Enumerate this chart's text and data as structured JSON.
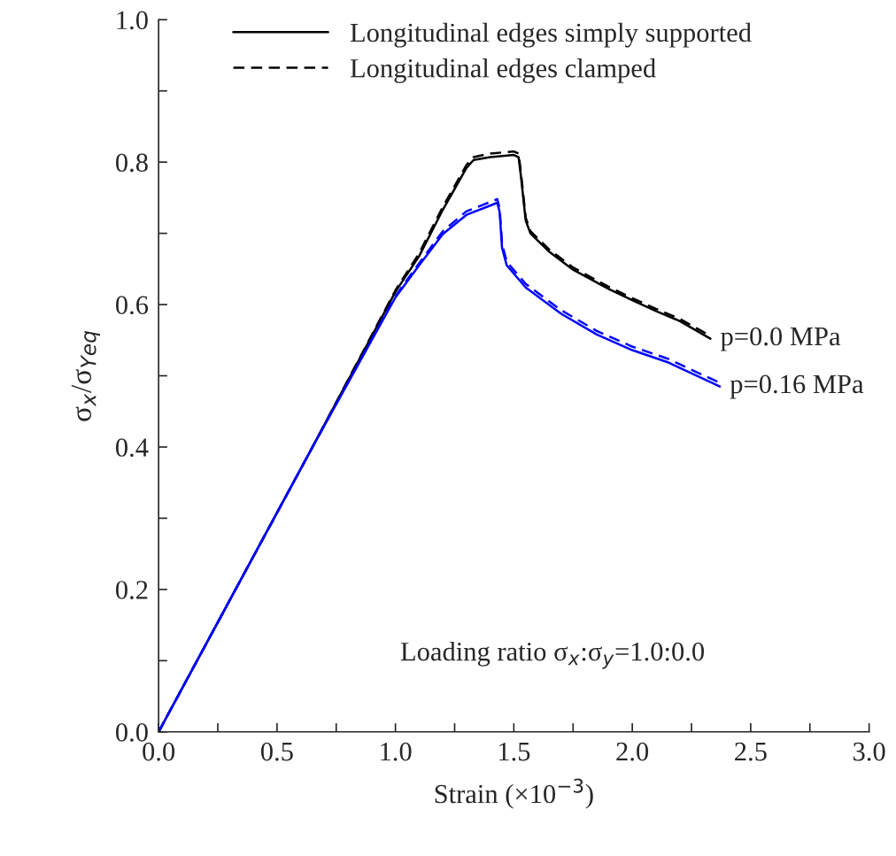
{
  "chart_data": {
    "type": "line",
    "xlabel": "Strain (×10$^{−3}$)",
    "ylabel": "σ$_{x}$/σ$_{Yeq}$",
    "xlim": [
      0,
      3.0
    ],
    "ylim": [
      0,
      1.0
    ],
    "xticks": [
      {
        "value": 0,
        "label": "0.0"
      },
      {
        "value": 0.25,
        "label": null
      },
      {
        "value": 0.5,
        "label": "0.5"
      },
      {
        "value": 0.75,
        "label": null
      },
      {
        "value": 1.0,
        "label": "1.0"
      },
      {
        "value": 1.25,
        "label": null
      },
      {
        "value": 1.5,
        "label": "1.5"
      },
      {
        "value": 1.75,
        "label": null
      },
      {
        "value": 2.0,
        "label": "2.0"
      },
      {
        "value": 2.25,
        "label": null
      },
      {
        "value": 2.5,
        "label": "2.5"
      },
      {
        "value": 2.75,
        "label": null
      },
      {
        "value": 3.0,
        "label": "3.0"
      }
    ],
    "yticks": [
      {
        "value": 0,
        "label": "0.0"
      },
      {
        "value": 0.1,
        "label": null
      },
      {
        "value": 0.2,
        "label": "0.2"
      },
      {
        "value": 0.3,
        "label": null
      },
      {
        "value": 0.4,
        "label": "0.4"
      },
      {
        "value": 0.5,
        "label": null
      },
      {
        "value": 0.6,
        "label": "0.6"
      },
      {
        "value": 0.7,
        "label": null
      },
      {
        "value": 0.8,
        "label": "0.8"
      },
      {
        "value": 0.9,
        "label": null
      },
      {
        "value": 1.0,
        "label": "1.0"
      }
    ],
    "grid": false,
    "legend": "top",
    "marker": "none",
    "series": [
      {
        "name": "Longitudinal edges simply supported",
        "color": "#000000",
        "line_style": "solid",
        "x": [
          0,
          0.65,
          1.0,
          1.1,
          1.2,
          1.3,
          1.33,
          1.4,
          1.5,
          1.52,
          1.53,
          1.55,
          1.57,
          1.65,
          1.75,
          1.9,
          2.0,
          2.1,
          2.2,
          2.33
        ],
        "values": [
          0,
          0.4,
          0.618,
          0.668,
          0.733,
          0.792,
          0.803,
          0.807,
          0.81,
          0.807,
          0.78,
          0.718,
          0.7,
          0.674,
          0.649,
          0.622,
          0.606,
          0.591,
          0.577,
          0.552
        ]
      },
      {
        "name": "Longitudinal edges clamped",
        "color": "#000000",
        "line_style": "dashed",
        "x": [
          0,
          0.65,
          1.0,
          1.1,
          1.2,
          1.3,
          1.33,
          1.4,
          1.5,
          1.52,
          1.53,
          1.55,
          1.57,
          1.65,
          1.75,
          1.9,
          2.0,
          2.1,
          2.2,
          2.33
        ],
        "values": [
          0,
          0.4,
          0.62,
          0.672,
          0.737,
          0.796,
          0.807,
          0.812,
          0.815,
          0.812,
          0.785,
          0.722,
          0.703,
          0.677,
          0.652,
          0.625,
          0.609,
          0.594,
          0.58,
          0.556
        ]
      },
      {
        "color": "#0000ff",
        "line_style": "solid",
        "x": [
          0,
          0.65,
          1.0,
          1.1,
          1.2,
          1.3,
          1.4,
          1.43,
          1.44,
          1.45,
          1.47,
          1.55,
          1.7,
          1.85,
          2.0,
          2.15,
          2.37
        ],
        "values": [
          0,
          0.4,
          0.61,
          0.655,
          0.699,
          0.726,
          0.739,
          0.743,
          0.73,
          0.68,
          0.655,
          0.624,
          0.587,
          0.558,
          0.536,
          0.519,
          0.485
        ]
      },
      {
        "color": "#0000ff",
        "line_style": "dashed",
        "x": [
          0,
          0.65,
          1.0,
          1.1,
          1.2,
          1.3,
          1.4,
          1.43,
          1.44,
          1.45,
          1.47,
          1.55,
          1.7,
          1.85,
          2.0,
          2.15,
          2.37
        ],
        "values": [
          0,
          0.4,
          0.612,
          0.658,
          0.703,
          0.731,
          0.744,
          0.748,
          0.735,
          0.686,
          0.66,
          0.629,
          0.592,
          0.563,
          0.541,
          0.524,
          0.49
        ]
      }
    ],
    "annotations": [
      {
        "text": "p=0.0 MPa",
        "x": 2.33,
        "y": 0.552
      },
      {
        "text": "p=0.16 MPa",
        "x": 2.37,
        "y": 0.485
      },
      "Loading ratio σ$_{x}$:σ$_{y}$=1.0:0.0"
    ]
  }
}
